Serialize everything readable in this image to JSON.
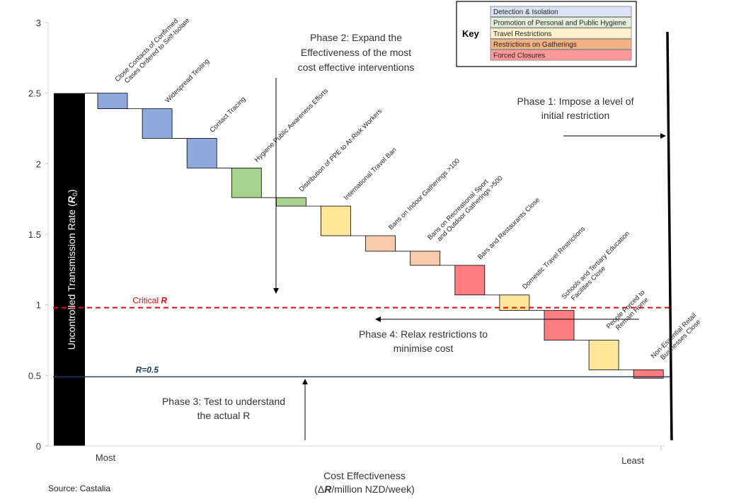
{
  "chart_data": {
    "type": "bar",
    "subtype": "waterfall",
    "source": "Source: Castalia",
    "xlabel_line1": "Cost Effectiveness",
    "xlabel_line2_prefix": "(Δ",
    "xlabel_line2_var": "R",
    "xlabel_line2_suffix": "/million NZD/week)",
    "ylabel_prefix": "Uncontrolled Transmission Rate (",
    "ylabel_var": "R",
    "ylabel_sub": "0",
    "ylabel_suffix": ")",
    "ylim": [
      0,
      3
    ],
    "yticks": [
      "0",
      "0.5",
      "1",
      "1.5",
      "2",
      "2.5",
      "3"
    ],
    "ytick_values": [
      0,
      0.5,
      1,
      1.5,
      2,
      2.5,
      3
    ],
    "x_start_label": "Most",
    "x_end_label": "Least",
    "initial_value": 2.5,
    "categories": [
      [
        "Close Contacts of Confirmed",
        "Cases Ordered to Self-Isolate"
      ],
      [
        "Widespread Testing"
      ],
      [
        "Contact Tracing"
      ],
      [
        "Hygiene Public Awareness Efforts"
      ],
      [
        "Distribution of PPE to At-Risk Workers"
      ],
      [
        "International Travel Ban"
      ],
      [
        "Bans on Indoor Gatherings >100"
      ],
      [
        "Bans on Recreational Sport",
        "and Outdoor Gatherings >500"
      ],
      [
        "Bars and Restaurants Close"
      ],
      [
        "Domestic Travel Restrictions"
      ],
      [
        "Schools and Tertiary Education",
        "Facilities Close"
      ],
      [
        "People Forced to",
        "Remain Home"
      ],
      [
        "Non-Essential Retail",
        "Businesses Close"
      ]
    ],
    "bars": [
      {
        "top": 2.5,
        "bottom": 2.39,
        "group": "Detection & Isolation"
      },
      {
        "top": 2.39,
        "bottom": 2.18,
        "group": "Detection & Isolation"
      },
      {
        "top": 2.18,
        "bottom": 1.97,
        "group": "Detection & Isolation"
      },
      {
        "top": 1.97,
        "bottom": 1.76,
        "group": "Promotion of Personal and Public Hygiene"
      },
      {
        "top": 1.76,
        "bottom": 1.7,
        "group": "Promotion of Personal and Public Hygiene"
      },
      {
        "top": 1.7,
        "bottom": 1.49,
        "group": "Travel Restrictions"
      },
      {
        "top": 1.49,
        "bottom": 1.38,
        "group": "Restrictions on Gatherings"
      },
      {
        "top": 1.38,
        "bottom": 1.28,
        "group": "Restrictions on Gatherings"
      },
      {
        "top": 1.28,
        "bottom": 1.07,
        "group": "Forced Closures"
      },
      {
        "top": 1.07,
        "bottom": 0.96,
        "group": "Travel Restrictions"
      },
      {
        "top": 0.96,
        "bottom": 0.75,
        "group": "Forced Closures"
      },
      {
        "top": 0.75,
        "bottom": 0.54,
        "group": "Travel Restrictions"
      },
      {
        "top": 0.54,
        "bottom": 0.48,
        "group": "Forced Closures"
      }
    ],
    "legend": {
      "title": "Key",
      "position": "top-right",
      "items": [
        {
          "label": "Detection & Isolation",
          "color": "#8EA9DB"
        },
        {
          "label": "Promotion of Personal and Public Hygiene",
          "color": "#A9D18E"
        },
        {
          "label": "Travel Restrictions",
          "color": "#FFE699"
        },
        {
          "label": "Restrictions on Gatherings",
          "color": "#F8CBAD"
        },
        {
          "label": "Forced Closures",
          "color": "#FF7C80"
        }
      ],
      "swatch_fills": [
        "#DAE3F3",
        "#E2F0D9",
        "#FFF2CC",
        "#F4B183",
        "#FF9999"
      ]
    },
    "reference_lines": [
      {
        "value": 0.98,
        "label_prefix": "Critical ",
        "label_var": "R",
        "label_suffix": "",
        "color": "#FF0000",
        "style": "dashed"
      },
      {
        "value": 0.49,
        "label_prefix": "",
        "label_var": "R",
        "label_suffix": "=0.5",
        "color": "#1F3864",
        "style": "solid"
      }
    ],
    "annotations": {
      "phase1": [
        "Phase 1: Impose a level of",
        "initial restriction"
      ],
      "phase2": [
        "Phase 2: Expand the",
        "Effectiveness of the most",
        "cost effective interventions"
      ],
      "phase3": [
        "Phase 3: Test to understand",
        "the actual R"
      ],
      "phase4": [
        "Phase 4: Relax restrictions to",
        "minimise cost"
      ]
    }
  }
}
